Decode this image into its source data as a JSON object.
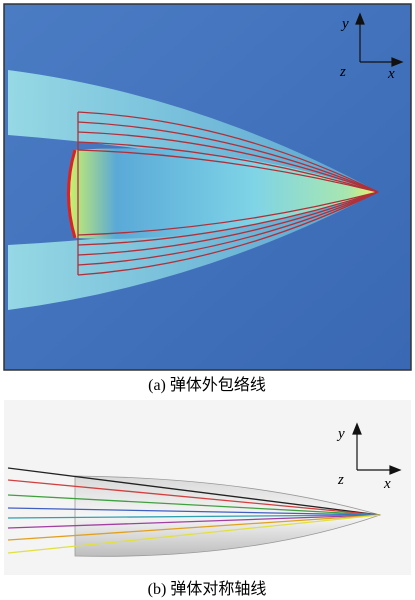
{
  "panels": [
    {
      "axes": {
        "y": "y",
        "z": "z",
        "x": "x"
      },
      "caption": "(a) 弹体外包络线"
    },
    {
      "axes": {
        "y": "y",
        "z": "z",
        "x": "x"
      },
      "caption": "(b) 弹体对称轴线"
    }
  ]
}
